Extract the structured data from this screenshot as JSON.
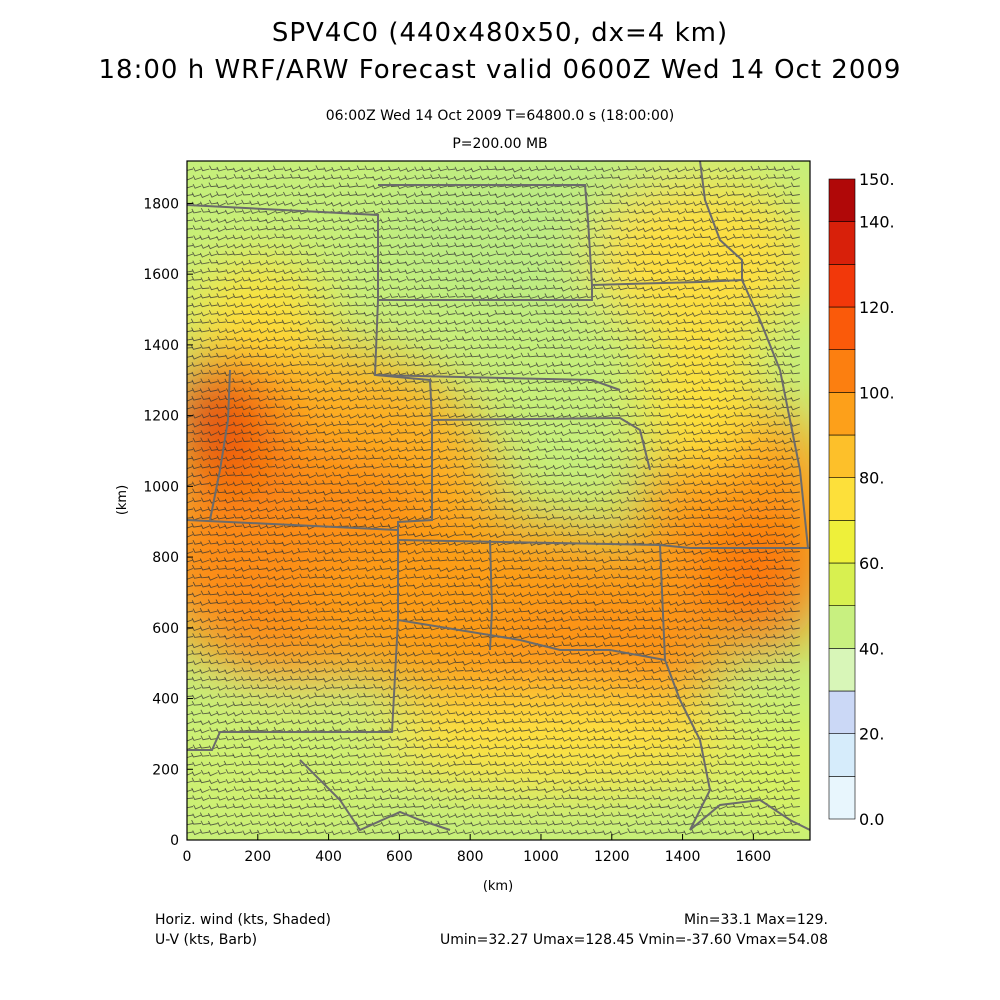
{
  "header": {
    "title_line1": "SPV4C0 (440x480x50, dx=4 km)",
    "title_line2": "18:00 h WRF/ARW Forecast valid 0600Z Wed 14 Oct 2009",
    "valid_time": "06:00Z Wed 14 Oct 2009     T=64800.0 s (18:00:00)",
    "pressure_level": "P=200.00 MB"
  },
  "axes": {
    "x_label": "(km)",
    "y_label": "(km)",
    "x_ticks": [
      "0",
      "200",
      "400",
      "600",
      "800",
      "1000",
      "1200",
      "1400",
      "1600"
    ],
    "y_ticks": [
      "0",
      "200",
      "400",
      "600",
      "800",
      "1000",
      "1200",
      "1400",
      "1600",
      "1800"
    ],
    "x_range_km": [
      0,
      1760
    ],
    "y_range_km": [
      0,
      1920
    ]
  },
  "colorbar": {
    "labels": [
      "0.0",
      "20.",
      "40.",
      "60.",
      "80.",
      "100.",
      "120.",
      "140.",
      "150."
    ],
    "levels": [
      0,
      10,
      20,
      30,
      40,
      50,
      60,
      70,
      80,
      90,
      100,
      110,
      120,
      130,
      140,
      150
    ],
    "colors": [
      "#e8f6fd",
      "#d6ecfb",
      "#cbd8f6",
      "#d8f6b8",
      "#c8f080",
      "#d8f050",
      "#eef03a",
      "#fde03a",
      "#fdc02a",
      "#fda01a",
      "#fc7f10",
      "#fa5a0a",
      "#f2380a",
      "#d8200a",
      "#b00808"
    ]
  },
  "footer": {
    "field1": "Horiz. wind (kts, Shaded)",
    "field2": "U-V (kts, Barb)",
    "minmax": "Min=33.1 Max=129.",
    "uv_stats": "Umin=32.27 Umax=128.45 Vmin=-37.60 Vmax=54.08"
  }
}
